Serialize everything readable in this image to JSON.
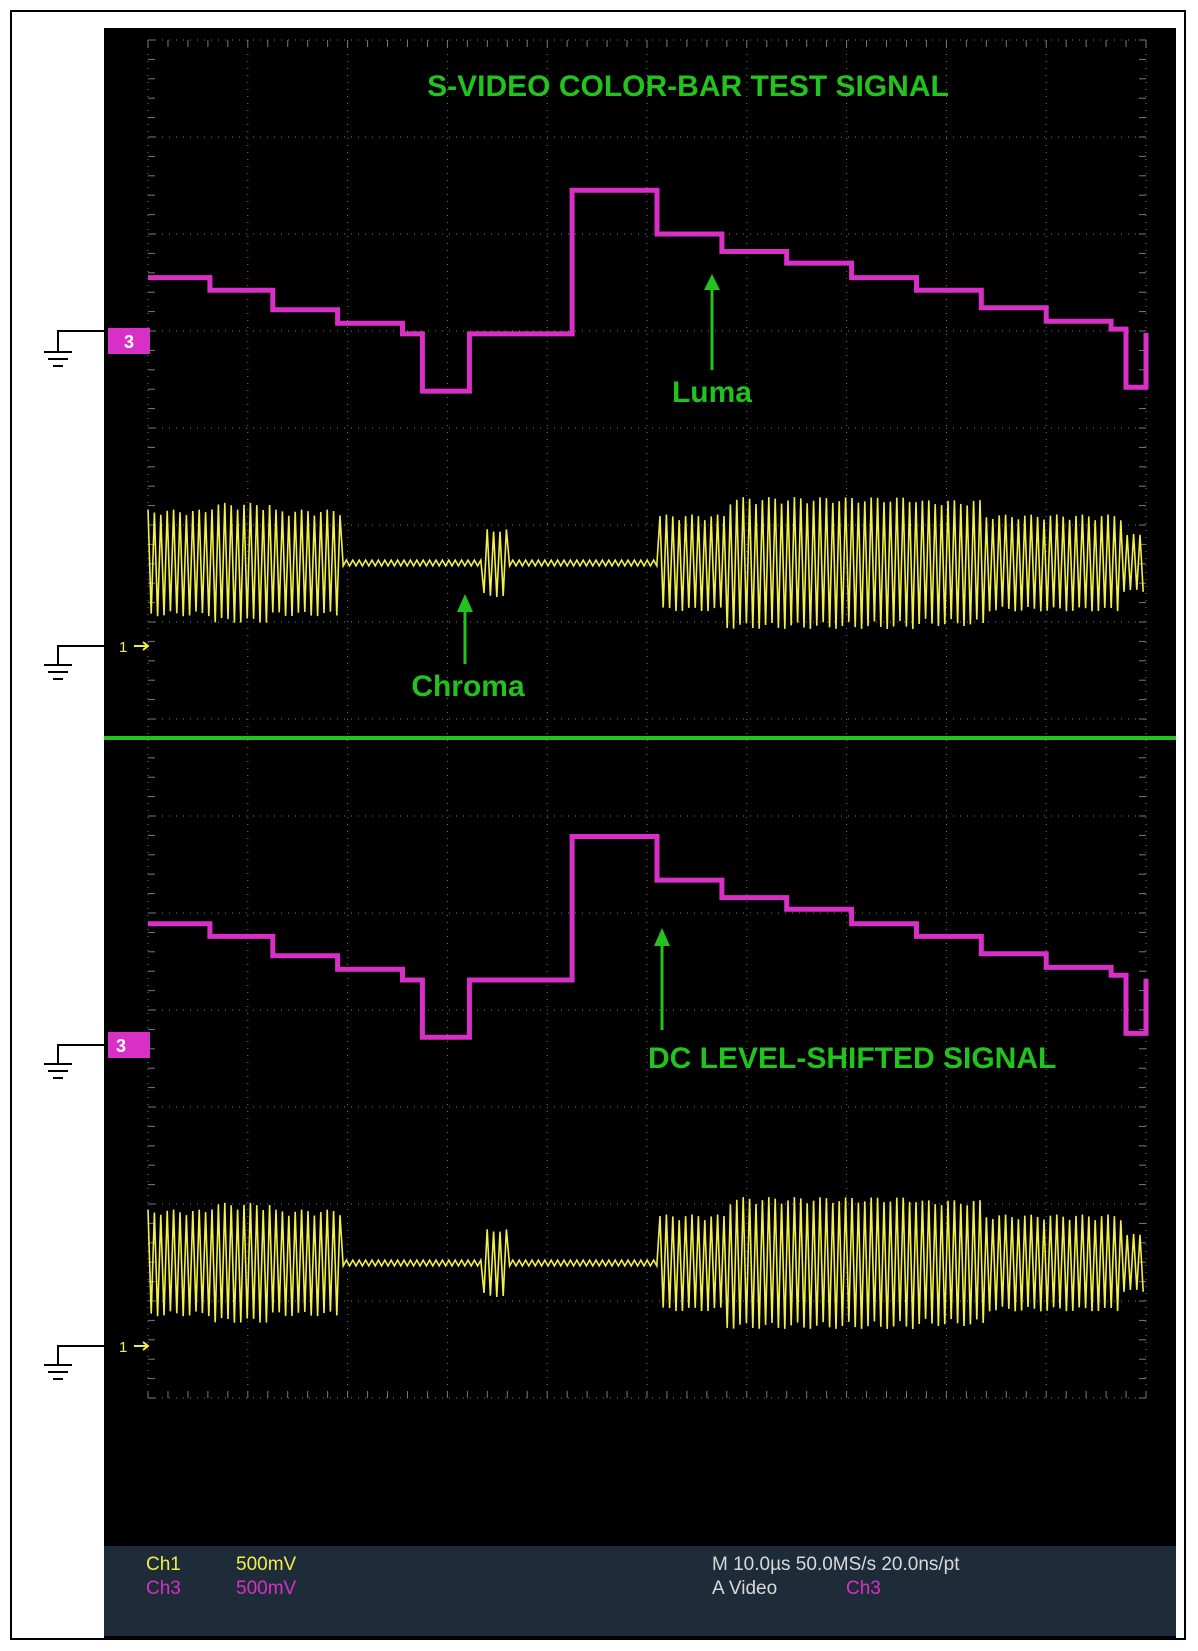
{
  "colors": {
    "screen_bg": "#000000",
    "grid": "#7a7a7a",
    "ch1": "#f2ee4a",
    "ch3": "#d830c6",
    "annotation": "#22c21f",
    "divider": "#22c21f",
    "status_bg": "#1e2b38",
    "status_text": "#d9d9d9"
  },
  "annotations": {
    "title": "S-VIDEO COLOR-BAR TEST SIGNAL",
    "luma": "Luma",
    "chroma": "Chroma",
    "dc_shift": "DC LEVEL-SHIFTED SIGNAL"
  },
  "markers": {
    "ch3_top": "3",
    "ch1_top": "1",
    "ch3_bottom": "3",
    "ch1_bottom": "1"
  },
  "status": {
    "ch1_name": "Ch1",
    "ch1_scale": "500mV",
    "ch3_name": "Ch3",
    "ch3_scale": "500mV",
    "timebase": "M 10.0µs 50.0MS/s  20.0ns/pt",
    "trigger_prefix": "A  Video",
    "trigger_source": "Ch3"
  },
  "chart_data": {
    "type": "line",
    "title": "S-VIDEO COLOR-BAR TEST SIGNAL",
    "grid": true,
    "divisions": {
      "horizontal": 10,
      "vertical": 14
    },
    "panels": [
      {
        "name": "top",
        "series": [
          {
            "name": "Luma",
            "channel": "Ch3",
            "x_div": [
              0,
              0.62,
              1.25,
              1.9,
              2.55,
              2.75,
              3.22,
              3.75,
              4.25,
              4.4,
              5.1,
              5.75,
              6.4,
              7.05,
              7.7,
              8.35,
              9.0,
              9.65,
              9.8,
              10.0
            ],
            "y_div": [
              0.55,
              0.42,
              0.22,
              0.08,
              -0.03,
              -0.62,
              -0.03,
              -0.03,
              1.45,
              1.45,
              1.0,
              0.82,
              0.7,
              0.55,
              0.42,
              0.24,
              0.1,
              0.02,
              -0.58,
              -0.02
            ]
          },
          {
            "name": "Chroma",
            "channel": "Ch1",
            "x_div": [
              0,
              0.62,
              1.25,
              1.95,
              3.35,
              3.35,
              3.6,
              4.4,
              5.1,
              5.8,
              6.5,
              7.0,
              7.7,
              8.4,
              9.75,
              9.75,
              10.0
            ],
            "amplitude_div": [
              0.55,
              0.62,
              0.55,
              0.03,
              0.03,
              0.35,
              0.03,
              0.03,
              0.5,
              0.68,
              0.68,
              0.68,
              0.65,
              0.5,
              0.03,
              0.3,
              0.3
            ]
          }
        ]
      },
      {
        "name": "bottom",
        "series": [
          {
            "name": "DC LEVEL-SHIFTED SIGNAL",
            "channel": "Ch3",
            "x_div": [
              0,
              0.62,
              1.25,
              1.9,
              2.55,
              2.75,
              3.22,
              3.75,
              4.25,
              4.4,
              5.1,
              5.75,
              6.4,
              7.05,
              7.7,
              8.35,
              9.0,
              9.65,
              9.8,
              10.0
            ],
            "y_div": [
              1.25,
              1.12,
              0.92,
              0.78,
              0.67,
              0.08,
              0.67,
              0.67,
              2.15,
              2.15,
              1.7,
              1.52,
              1.4,
              1.25,
              1.12,
              0.94,
              0.8,
              0.72,
              0.12,
              0.68
            ]
          },
          {
            "name": "Chroma",
            "channel": "Ch1",
            "x_div": [
              0,
              0.62,
              1.25,
              1.95,
              3.35,
              3.35,
              3.6,
              4.4,
              5.1,
              5.8,
              6.5,
              7.0,
              7.7,
              8.4,
              9.75,
              9.75,
              10.0
            ],
            "amplitude_div": [
              0.55,
              0.62,
              0.55,
              0.03,
              0.03,
              0.35,
              0.03,
              0.03,
              0.5,
              0.68,
              0.68,
              0.68,
              0.65,
              0.5,
              0.03,
              0.3,
              0.3
            ]
          }
        ]
      }
    ]
  }
}
